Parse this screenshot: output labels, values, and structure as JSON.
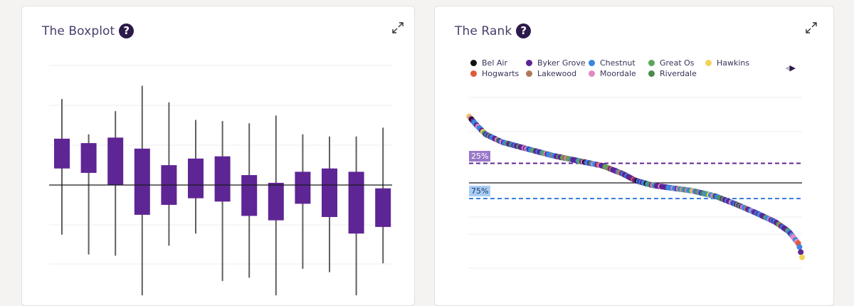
{
  "boxplot_panel": {
    "title": "The Boxplot",
    "help_symbol": "?"
  },
  "rank_panel": {
    "title": "The Rank",
    "help_symbol": "?",
    "legend_nav": {
      "prev_symbol": "◀",
      "next_symbol": "▶"
    },
    "percentile_labels": {
      "p25": "25%",
      "p75": "75%"
    }
  },
  "colors": {
    "box_fill": "#5e2595",
    "whisker": "#5f5f5f",
    "median_line": "#1a1a1a",
    "gridline": "#ececec",
    "p25_line": "#5e2595",
    "p75_line": "#3a7fe0",
    "help_bg": "#2c1a4a",
    "title": "#4a3e6b"
  },
  "chart_data": [
    {
      "type": "boxplot",
      "title": "The Boxplot",
      "grid": true,
      "reference_line": 0,
      "ylim": [
        -100,
        100
      ],
      "boxes": [
        {
          "min": -45,
          "q1": 15,
          "q3": 42,
          "max": 78
        },
        {
          "min": -63,
          "q1": 11,
          "q3": 38,
          "max": 46
        },
        {
          "min": -64,
          "q1": 0,
          "q3": 43,
          "max": 67
        },
        {
          "min": -100,
          "q1": -27,
          "q3": 33,
          "max": 90
        },
        {
          "min": -55,
          "q1": -18,
          "q3": 18,
          "max": 75
        },
        {
          "min": -44,
          "q1": -12,
          "q3": 24,
          "max": 59
        },
        {
          "min": -87,
          "q1": -15,
          "q3": 26,
          "max": 58
        },
        {
          "min": -84,
          "q1": -28,
          "q3": 9,
          "max": 56
        },
        {
          "min": -100,
          "q1": -32,
          "q3": 2,
          "max": 63
        },
        {
          "min": -76,
          "q1": -17,
          "q3": 12,
          "max": 46
        },
        {
          "min": -79,
          "q1": -29,
          "q3": 15,
          "max": 44
        },
        {
          "min": -100,
          "q1": -44,
          "q3": 12,
          "max": 44
        },
        {
          "min": -71,
          "q1": -38,
          "q3": -3,
          "max": 52
        }
      ]
    },
    {
      "type": "scatter",
      "title": "The Rank",
      "grid": true,
      "legend_position": "top",
      "reference_line": 0,
      "ylim": [
        -100,
        100
      ],
      "percentile_lines": [
        {
          "label": "25%",
          "y": 25
        },
        {
          "label": "75%",
          "y": -20
        }
      ],
      "legend": [
        {
          "name": "Bel Air",
          "color": "#111111"
        },
        {
          "name": "Byker Grove",
          "color": "#5e2595"
        },
        {
          "name": "Chestnut",
          "color": "#3a86e0"
        },
        {
          "name": "Great Os",
          "color": "#5aa55a"
        },
        {
          "name": "Hawkins",
          "color": "#f2d35a"
        },
        {
          "name": "Hogwarts",
          "color": "#e05a3a"
        },
        {
          "name": "Lakewood",
          "color": "#b07a5a"
        },
        {
          "name": "Moordale",
          "color": "#e08ac0"
        },
        {
          "name": "Riverdale",
          "color": "#4a8a4a"
        }
      ],
      "x_range": [
        0,
        1
      ],
      "curve_points": [
        [
          0.0,
          85
        ],
        [
          0.02,
          75
        ],
        [
          0.05,
          62
        ],
        [
          0.1,
          52
        ],
        [
          0.17,
          44
        ],
        [
          0.25,
          35
        ],
        [
          0.33,
          28
        ],
        [
          0.4,
          22
        ],
        [
          0.46,
          12
        ],
        [
          0.5,
          3
        ],
        [
          0.55,
          -3
        ],
        [
          0.6,
          -6
        ],
        [
          0.67,
          -10
        ],
        [
          0.74,
          -17
        ],
        [
          0.8,
          -27
        ],
        [
          0.86,
          -38
        ],
        [
          0.92,
          -50
        ],
        [
          0.96,
          -62
        ],
        [
          0.99,
          -78
        ],
        [
          1.0,
          -95
        ]
      ]
    }
  ]
}
